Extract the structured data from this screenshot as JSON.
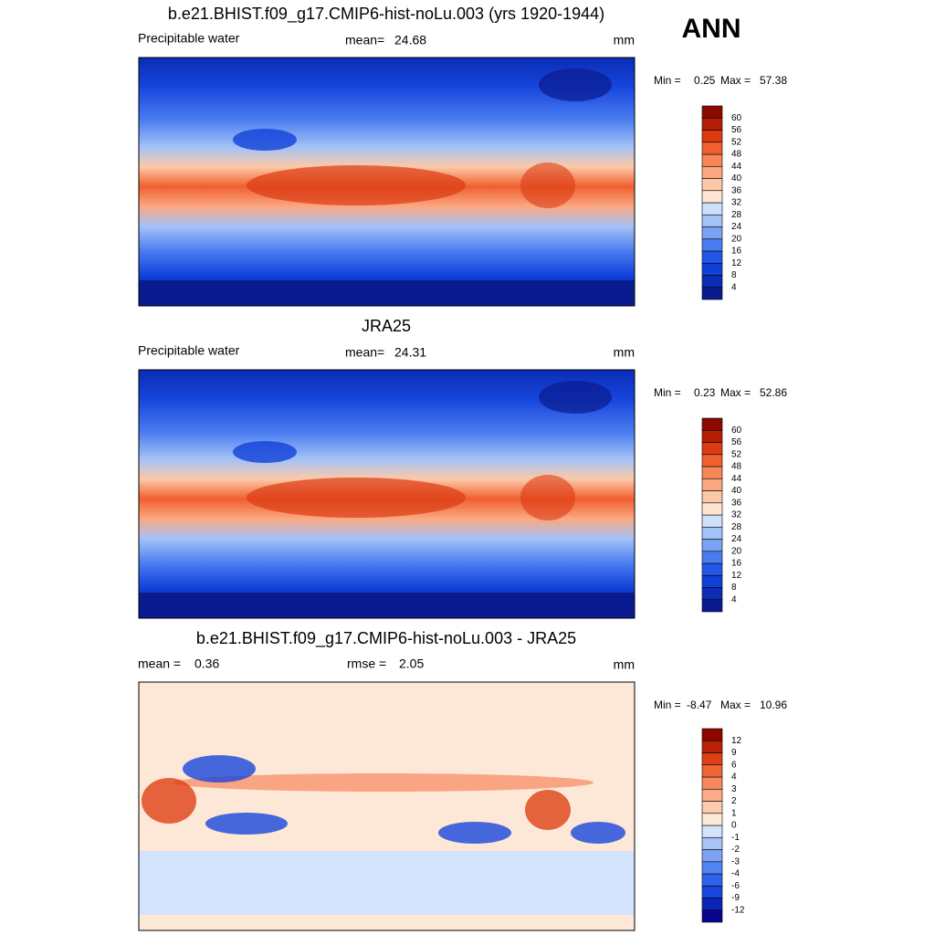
{
  "season": "ANN",
  "panels": [
    {
      "title": "b.e21.BHIST.f09_g17.CMIP6-hist-noLu.003 (yrs 1920-1944)",
      "variable": "Precipitable water",
      "stats": [
        {
          "label": "mean=",
          "value": 24.68
        }
      ],
      "units": "mm",
      "range": {
        "min_label": "Min =",
        "min": 0.25,
        "max_label": "Max =",
        "max": 57.38
      },
      "levels": [
        4,
        8,
        12,
        16,
        20,
        24,
        28,
        32,
        36,
        40,
        44,
        48,
        52,
        56,
        60
      ]
    },
    {
      "title": "JRA25",
      "variable": "Precipitable water",
      "stats": [
        {
          "label": "mean=",
          "value": 24.31
        }
      ],
      "units": "mm",
      "range": {
        "min_label": "Min =",
        "min": 0.23,
        "max_label": "Max =",
        "max": 52.86
      },
      "levels": [
        4,
        8,
        12,
        16,
        20,
        24,
        28,
        32,
        36,
        40,
        44,
        48,
        52,
        56,
        60
      ]
    },
    {
      "title": "b.e21.BHIST.f09_g17.CMIP6-hist-noLu.003 - JRA25",
      "stats": [
        {
          "label": "mean =",
          "value": 0.36
        },
        {
          "label": "rmse =",
          "value": 2.05
        }
      ],
      "units": "mm",
      "range": {
        "min_label": "Min =",
        "min": -8.47,
        "max_label": "Max =",
        "max": 10.96
      },
      "levels": [
        -12,
        -9,
        -6,
        -4,
        -3,
        -2,
        -1,
        0,
        1,
        2,
        3,
        4,
        6,
        9,
        12
      ]
    }
  ]
}
